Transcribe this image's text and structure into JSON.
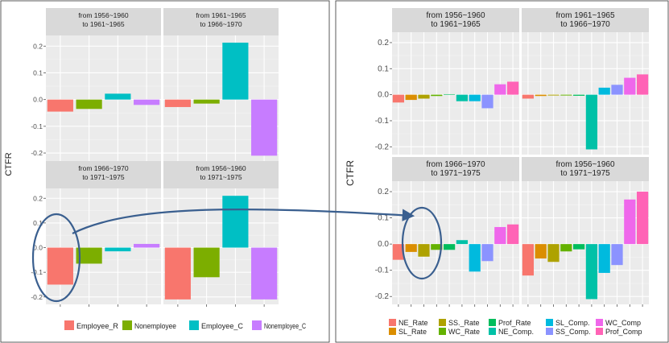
{
  "colors": {
    "Employee_R": "#F8766D",
    "Nonemployee": "#7CAE00",
    "Employee_C": "#00BFC4",
    "Nonemployee_C": "#C77CFF",
    "NE_Rate": "#F8766D",
    "SL_Rate": "#DB8E00",
    "SS_Rate": "#AEA200",
    "WC_Rate": "#64B200",
    "Prof_Rate": "#00BD5C",
    "NE_Comp": "#00C1A7",
    "SL_Comp": "#00BADE",
    "SS_Comp": "#00A6FF",
    "SS_Comp2": "#8B93FF",
    "WC_Comp": "#EF67EB",
    "Prof_Comp": "#FF63B6",
    "strip": "#D9D9D9",
    "panel": "#EBEBEB",
    "annotation": "#3A5F8F"
  },
  "chart_data": [
    {
      "type": "bar",
      "ylabel": "CTFR",
      "ylim": [
        -0.23,
        0.24
      ],
      "yticks": [
        "-0.2",
        "-0.1",
        "0.0",
        "0.1",
        "0.2"
      ],
      "ytick_values": [
        -0.2,
        -0.1,
        0.0,
        0.1,
        0.2
      ],
      "grid": true,
      "legend_position": "bottom",
      "legend": [
        "Employee_R",
        "Nonemployee",
        "Employee_C",
        "Nonemployee_C"
      ],
      "panels": [
        {
          "strip": [
            "from 1956~1960",
            "to 1961~1965"
          ],
          "values": [
            -0.045,
            -0.035,
            0.022,
            -0.02
          ]
        },
        {
          "strip": [
            "from 1961~1965",
            "to 1966~1970"
          ],
          "values": [
            -0.028,
            -0.015,
            0.213,
            -0.21
          ]
        },
        {
          "strip": [
            "from 1966~1970",
            "to 1971~1975"
          ],
          "values": [
            -0.15,
            -0.065,
            -0.015,
            0.015
          ]
        },
        {
          "strip": [
            "from 1956~1960",
            "to 1971~1975"
          ],
          "values": [
            -0.21,
            -0.12,
            0.21,
            -0.21
          ]
        }
      ]
    },
    {
      "type": "bar",
      "ylabel": "CTFR",
      "ylim": [
        -0.23,
        0.24
      ],
      "yticks": [
        "-0.2",
        "-0.1",
        "0.0",
        "0.1",
        "0.2"
      ],
      "ytick_values": [
        -0.2,
        -0.1,
        0.0,
        0.1,
        0.2
      ],
      "grid": true,
      "legend_position": "bottom",
      "legend": [
        "NE_Rate",
        "SL_Rate",
        "SS._Rate",
        "WC_Rate",
        "Prof_Rate",
        "NE_Comp.",
        "SL_Comp.",
        "SS_Comp.",
        "WC_Comp",
        "Prof_Comp"
      ],
      "panels": [
        {
          "strip": [
            "from 1956~1960",
            "to 1961~1965"
          ],
          "values": [
            -0.03,
            -0.02,
            -0.015,
            -0.005,
            0.002,
            -0.025,
            -0.025,
            -0.052,
            0.04,
            0.05
          ]
        },
        {
          "strip": [
            "from 1961~1965",
            "to 1966~1970"
          ],
          "values": [
            -0.015,
            -0.005,
            -0.003,
            -0.003,
            -0.004,
            -0.21,
            0.027,
            0.038,
            0.065,
            0.078
          ]
        },
        {
          "strip": [
            "from 1966~1970",
            "to 1971~1975"
          ],
          "values": [
            -0.06,
            -0.03,
            -0.048,
            -0.022,
            -0.022,
            0.015,
            -0.105,
            -0.065,
            0.065,
            0.075
          ]
        },
        {
          "strip": [
            "from 1956~1960",
            "to 1971~1975"
          ],
          "values": [
            -0.12,
            -0.055,
            -0.068,
            -0.028,
            -0.02,
            -0.21,
            -0.11,
            -0.08,
            0.17,
            0.2
          ]
        }
      ]
    }
  ]
}
